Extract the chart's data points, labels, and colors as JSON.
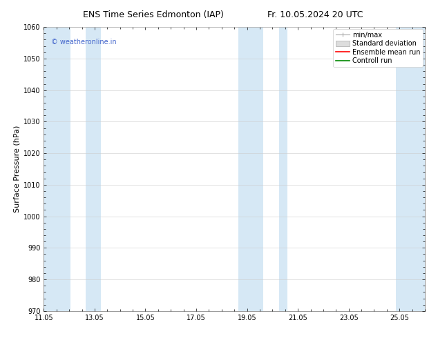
{
  "title_left": "ENS Time Series Edmonton (IAP)",
  "title_right": "Fr. 10.05.2024 20 UTC",
  "ylabel": "Surface Pressure (hPa)",
  "ylim": [
    970,
    1060
  ],
  "yticks": [
    970,
    980,
    990,
    1000,
    1010,
    1020,
    1030,
    1040,
    1050,
    1060
  ],
  "xlim_start": 11.05,
  "xlim_end": 26.05,
  "xtick_labels": [
    "11.05",
    "13.05",
    "15.05",
    "17.05",
    "19.05",
    "21.05",
    "23.05",
    "25.05"
  ],
  "xtick_positions": [
    11.05,
    13.05,
    15.05,
    17.05,
    19.05,
    21.05,
    23.05,
    25.05
  ],
  "shaded_bands": [
    {
      "x_start": 11.05,
      "x_end": 12.1
    },
    {
      "x_start": 12.7,
      "x_end": 13.3
    },
    {
      "x_start": 18.7,
      "x_end": 19.7
    },
    {
      "x_start": 20.3,
      "x_end": 20.65
    },
    {
      "x_start": 24.9,
      "x_end": 26.05
    }
  ],
  "shade_color": "#d6e8f5",
  "watermark": "© weatheronline.in",
  "watermark_color": "#4466cc",
  "background_color": "#ffffff",
  "legend_labels": [
    "min/max",
    "Standard deviation",
    "Ensemble mean run",
    "Controll run"
  ],
  "legend_line_colors": [
    "#aaaaaa",
    "#cccccc",
    "#ff0000",
    "#008800"
  ],
  "title_fontsize": 9,
  "axis_label_fontsize": 8,
  "tick_fontsize": 7,
  "legend_fontsize": 7,
  "watermark_fontsize": 7
}
